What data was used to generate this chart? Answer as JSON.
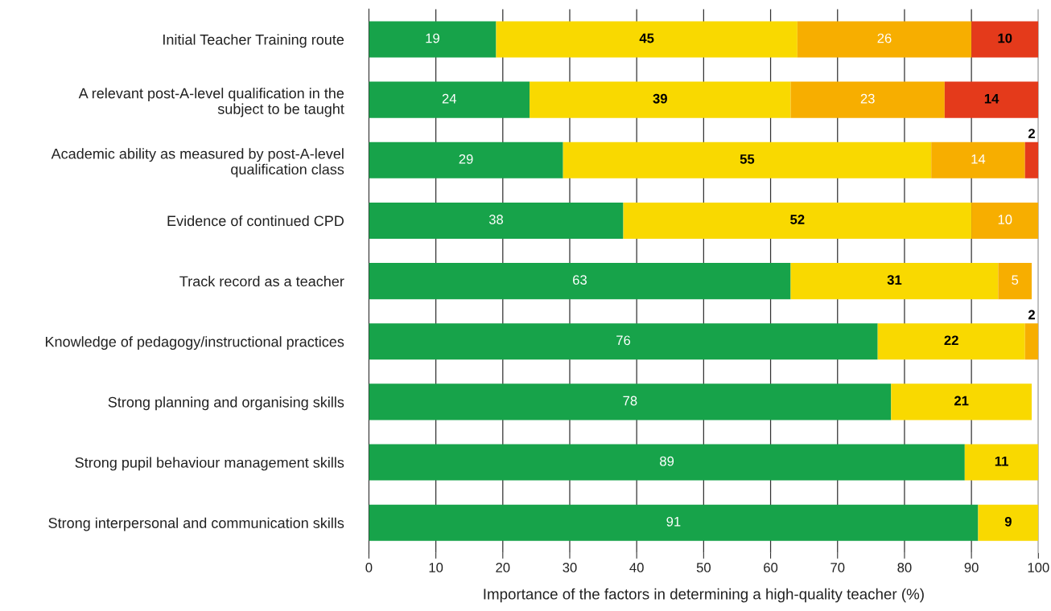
{
  "chart_data": {
    "type": "bar",
    "orientation": "horizontal",
    "stacked": true,
    "xlabel": "Importance of the factors in determining a high-quality teacher (%)",
    "categories": [
      "Initial Teacher Training route",
      "A relevant post-A-level qualification in the\nsubject to be taught",
      "Academic ability as measured by post-A-level\nqualification class",
      "Evidence of continued CPD",
      "Track record as a teacher",
      "Knowledge of pedagogy/instructional practices",
      "Strong planning and organising skills",
      "Strong pupil behaviour management skills",
      "Strong interpersonal and communication skills"
    ],
    "series": [
      {
        "color": "#17a34a",
        "values": [
          19,
          24,
          29,
          38,
          63,
          76,
          78,
          89,
          91
        ]
      },
      {
        "color": "#f9d900",
        "values": [
          45,
          39,
          55,
          52,
          31,
          22,
          21,
          11,
          9
        ]
      },
      {
        "color": "#f7ae00",
        "values": [
          26,
          23,
          14,
          10,
          5,
          2,
          null,
          null,
          null
        ]
      },
      {
        "color": "#e43a1b",
        "values": [
          10,
          14,
          2,
          null,
          null,
          null,
          null,
          null,
          null
        ]
      }
    ],
    "xlim": [
      0,
      100
    ],
    "xticks": [
      0,
      10,
      20,
      30,
      40,
      50,
      60,
      70,
      80,
      90,
      100
    ],
    "grid": "x",
    "data_labels": true,
    "legend": false
  }
}
